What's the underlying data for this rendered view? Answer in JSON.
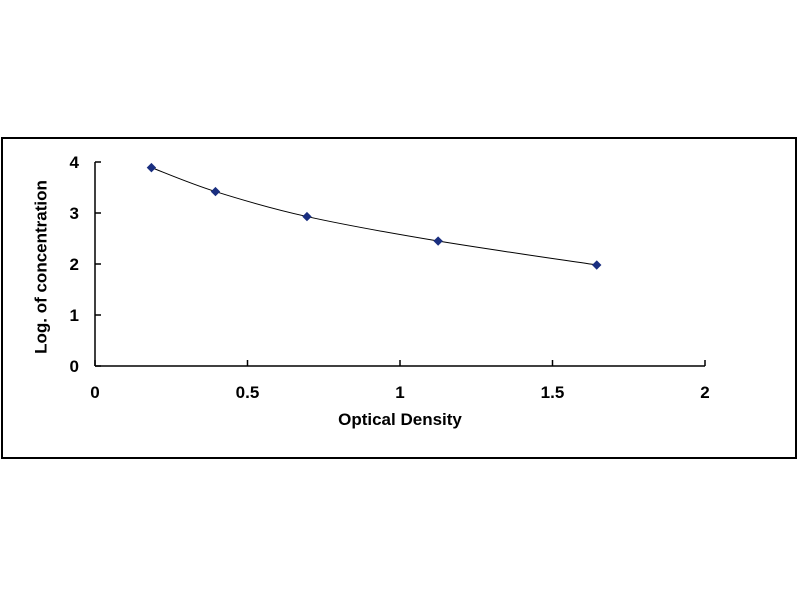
{
  "chart_data": {
    "type": "scatter",
    "title": "",
    "xlabel": "Optical Density",
    "ylabel": "Log. of concentration",
    "xlim": [
      0,
      2
    ],
    "ylim": [
      0,
      4
    ],
    "x_ticks": [
      0,
      0.5,
      1,
      1.5,
      2
    ],
    "y_ticks": [
      0,
      1,
      2,
      3,
      4
    ],
    "x_tick_labels": [
      "0",
      "0.5",
      "1",
      "1.5",
      "2"
    ],
    "y_tick_labels": [
      "0",
      "1",
      "2",
      "3",
      "4"
    ],
    "grid": false,
    "legend": "none",
    "trendline": "smooth curve",
    "series": [
      {
        "x": [
          0.185,
          0.395,
          0.695,
          1.125,
          1.645
        ],
        "y": [
          3.89,
          3.42,
          2.93,
          2.45,
          1.98
        ],
        "marker": "diamond",
        "color": "#1a2f80"
      }
    ]
  }
}
